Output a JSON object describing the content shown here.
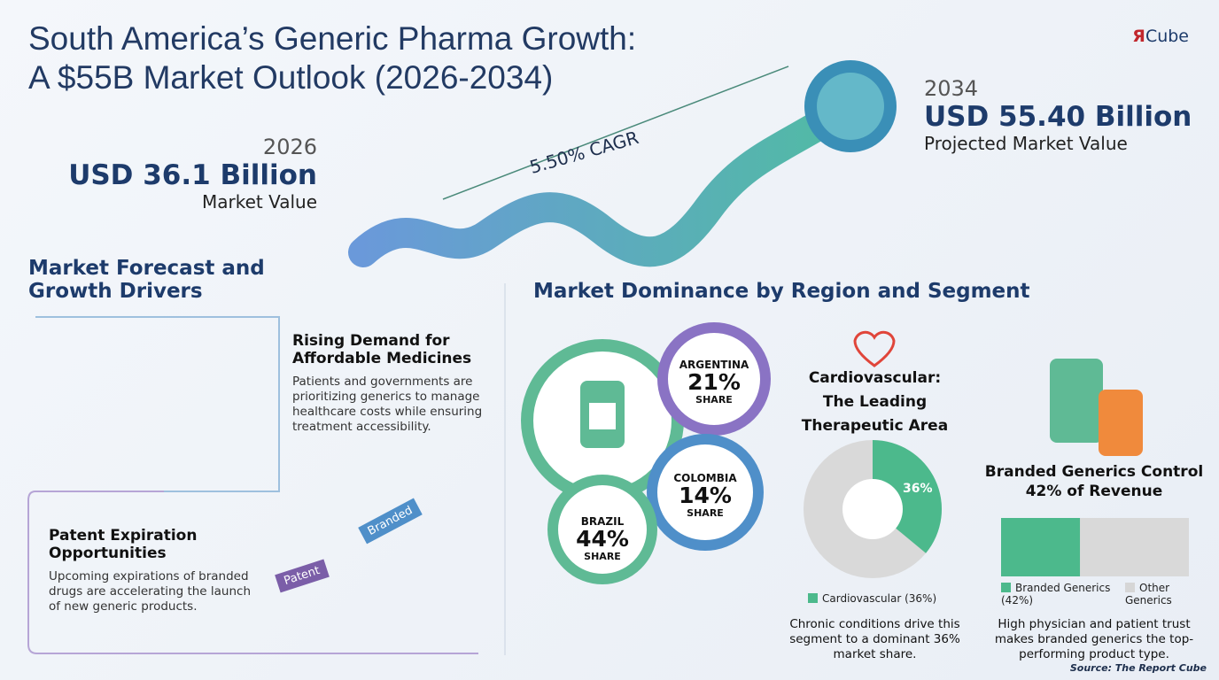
{
  "header": {
    "title_lines": [
      "South America’s Generic Pharma Growth:",
      "A $55B Market Outlook (2026-2034)"
    ],
    "logo_mark": "Я",
    "logo_text": "Cube"
  },
  "start": {
    "year": "2026",
    "value": "USD 36.1 Billion",
    "label": "Market Value"
  },
  "end": {
    "year": "2034",
    "value": "USD 55.40 Billion",
    "label": "Projected Market Value"
  },
  "cagr": "5.50% CAGR",
  "forecast": {
    "heading": "Market Forecast and Growth Drivers",
    "items": [
      {
        "title": "Rising Demand for Affordable Medicines",
        "text": "Patients and governments are prioritizing generics to manage healthcare costs while ensuring treatment accessibility.",
        "tags": []
      },
      {
        "title": "Patent Expiration Opportunities",
        "text": "Upcoming expirations of branded drugs are accelerating the launch of new generic products.",
        "tags": [
          "Patent",
          "Branded"
        ]
      }
    ]
  },
  "dominance": {
    "heading": "Market Dominance by Region and Segment",
    "regions": [
      {
        "name": "ARGENTINA",
        "share": "21%",
        "label": "SHARE"
      },
      {
        "name": "COLOMBIA",
        "share": "14%",
        "label": "SHARE"
      },
      {
        "name": "BRAZIL",
        "share": "44%",
        "label": "SHARE"
      }
    ]
  },
  "therapeutic": {
    "title": "Cardiovascular: The Leading Therapeutic Area",
    "pie": {
      "value": 36,
      "label": "36%"
    },
    "legend": "Cardiovascular (36%)",
    "note": "Chronic conditions drive this segment to a dominant 36% market share."
  },
  "segment": {
    "title": "Branded Generics Control 42% of Revenue",
    "bar": {
      "value": 42
    },
    "legend": [
      "Branded Generics (42%)",
      "Other Generics"
    ],
    "note": "High physician and patient trust makes branded generics the top-performing product type."
  },
  "source": "Source: The Report Cube"
}
